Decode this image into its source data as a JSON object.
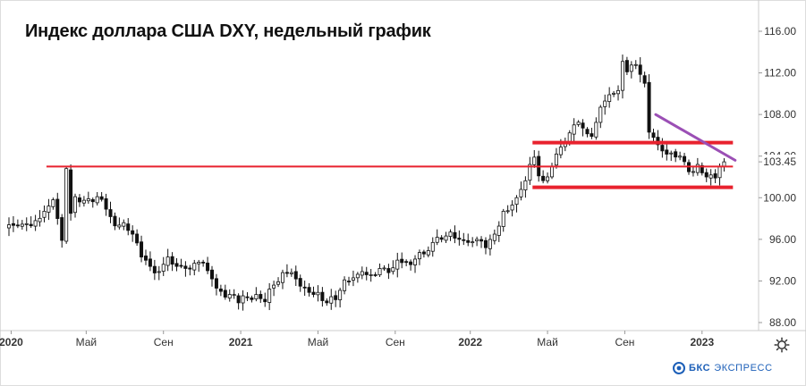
{
  "title": "Индекс доллара США DXY, недельный график",
  "brand": {
    "name": "БКС",
    "tagline": "ЭКСПРЕСС"
  },
  "settings_icon": "gear-icon",
  "colors": {
    "bull_candle": "#ffffff",
    "bear_candle": "#111111",
    "candle_outline": "#111111",
    "level_line": "#e8222e",
    "trend_line": "#9b4fb5",
    "brand": "#1c5fb8",
    "axis_border": "#cccccc",
    "grid": "#eeeeee"
  },
  "chart_data": {
    "type": "candlestick",
    "title": "Индекс доллара США DXY, недельный график",
    "y_ticks": [
      "116.00",
      "112.00",
      "108.00",
      "104.00",
      "103.45",
      "100.00",
      "96.00",
      "92.00",
      "88.00"
    ],
    "y_range": [
      87.6,
      117.0
    ],
    "x_ticks": [
      {
        "label": "2020",
        "week": 0.5,
        "bold": true
      },
      {
        "label": "Май",
        "week": 17.5,
        "bold": false
      },
      {
        "label": "Сен",
        "week": 35,
        "bold": false
      },
      {
        "label": "2021",
        "week": 52.5,
        "bold": true
      },
      {
        "label": "Май",
        "week": 70,
        "bold": false
      },
      {
        "label": "Сен",
        "week": 87.5,
        "bold": false
      },
      {
        "label": "2022",
        "week": 104.5,
        "bold": true
      },
      {
        "label": "Май",
        "week": 122,
        "bold": false
      },
      {
        "label": "Сен",
        "week": 139.5,
        "bold": false
      },
      {
        "label": "2023",
        "week": 157,
        "bold": true
      }
    ],
    "current_value": "103.45",
    "weeks": 166,
    "close_anchors": [
      [
        0,
        97.4
      ],
      [
        2,
        97.3
      ],
      [
        4,
        97.5
      ],
      [
        6,
        97.8
      ],
      [
        8,
        98.7
      ],
      [
        10,
        99.8
      ],
      [
        11,
        98.0
      ],
      [
        12,
        95.9
      ],
      [
        13,
        102.8
      ],
      [
        14,
        98.5
      ],
      [
        15,
        100.1
      ],
      [
        16,
        99.6
      ],
      [
        18,
        99.9
      ],
      [
        20,
        100.1
      ],
      [
        22,
        98.9
      ],
      [
        24,
        97.3
      ],
      [
        26,
        97.6
      ],
      [
        28,
        96.5
      ],
      [
        30,
        94.3
      ],
      [
        32,
        93.4
      ],
      [
        34,
        92.9
      ],
      [
        36,
        94.3
      ],
      [
        38,
        93.4
      ],
      [
        40,
        93.2
      ],
      [
        42,
        93.7
      ],
      [
        44,
        93.8
      ],
      [
        46,
        92.2
      ],
      [
        48,
        91.0
      ],
      [
        50,
        90.7
      ],
      [
        52,
        89.9
      ],
      [
        54,
        90.4
      ],
      [
        56,
        90.7
      ],
      [
        58,
        90.0
      ],
      [
        60,
        91.6
      ],
      [
        62,
        92.8
      ],
      [
        64,
        92.8
      ],
      [
        66,
        91.5
      ],
      [
        68,
        90.9
      ],
      [
        70,
        90.9
      ],
      [
        72,
        89.9
      ],
      [
        74,
        90.2
      ],
      [
        76,
        92.1
      ],
      [
        78,
        92.3
      ],
      [
        80,
        92.9
      ],
      [
        82,
        92.6
      ],
      [
        84,
        93.2
      ],
      [
        86,
        92.8
      ],
      [
        88,
        94.0
      ],
      [
        90,
        93.8
      ],
      [
        92,
        94.1
      ],
      [
        94,
        94.6
      ],
      [
        96,
        95.7
      ],
      [
        98,
        96.0
      ],
      [
        100,
        96.7
      ],
      [
        102,
        96.0
      ],
      [
        104,
        95.7
      ],
      [
        106,
        96.0
      ],
      [
        108,
        95.2
      ],
      [
        110,
        96.5
      ],
      [
        112,
        98.7
      ],
      [
        114,
        99.3
      ],
      [
        116,
        100.8
      ],
      [
        118,
        103.2
      ],
      [
        119,
        103.9
      ],
      [
        120,
        102.1
      ],
      [
        122,
        102.0
      ],
      [
        124,
        104.2
      ],
      [
        126,
        105.2
      ],
      [
        128,
        107.0
      ],
      [
        130,
        106.7
      ],
      [
        132,
        105.9
      ],
      [
        134,
        108.7
      ],
      [
        136,
        109.9
      ],
      [
        138,
        110.3
      ],
      [
        139,
        113.1
      ],
      [
        140,
        112.1
      ],
      [
        142,
        112.8
      ],
      [
        144,
        111.0
      ],
      [
        145,
        106.3
      ],
      [
        146,
        105.8
      ],
      [
        148,
        104.5
      ],
      [
        150,
        104.3
      ],
      [
        152,
        104.0
      ],
      [
        154,
        102.5
      ],
      [
        156,
        103.2
      ],
      [
        158,
        102.0
      ],
      [
        160,
        101.9
      ],
      [
        161,
        103.0
      ],
      [
        162,
        103.45
      ]
    ],
    "annotations": [
      {
        "type": "hline",
        "name": "level-103",
        "value": 103.0,
        "from_week": 8.5,
        "to_week": 164,
        "color": "#e8222e",
        "width": 2
      },
      {
        "type": "hline",
        "name": "level-105",
        "value": 105.3,
        "from_week": 118.6,
        "to_week": 164,
        "color": "#e8222e",
        "width": 4
      },
      {
        "type": "hline",
        "name": "level-101",
        "value": 101.0,
        "from_week": 118.6,
        "to_week": 164,
        "color": "#e8222e",
        "width": 4
      },
      {
        "type": "trend",
        "name": "trend-line",
        "from": [
          146.5,
          108.0
        ],
        "to": [
          164.5,
          103.6
        ],
        "color": "#9b4fb5",
        "width": 3
      }
    ]
  }
}
